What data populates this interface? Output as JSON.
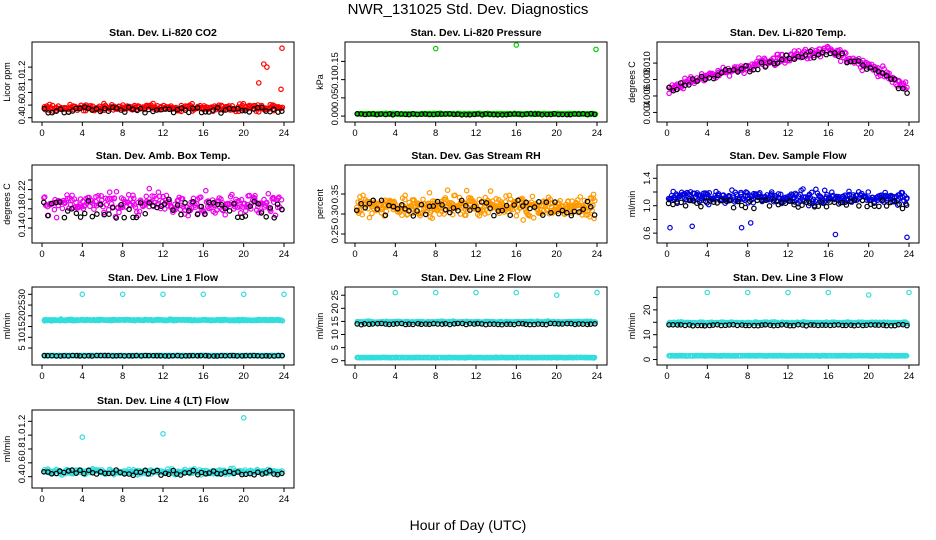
{
  "figure": {
    "title": "NWR_131025  Std. Dev. Diagnostics",
    "xlabel": "Hour of Day (UTC)"
  },
  "chart_data": [
    {
      "type": "scatter",
      "title": "Stan. Dev. Li-820 CO2",
      "ylabel": "Licor ppm",
      "xlim": [
        0,
        24
      ],
      "ylim": [
        0.38,
        1.55
      ],
      "xticks": [
        0,
        4,
        8,
        12,
        16,
        20,
        24
      ],
      "yticks": [
        0.4,
        0.6,
        0.8,
        1.0,
        1.2
      ],
      "ytick_labels": [
        "0.4",
        "0.6",
        "0.8",
        "1.0",
        "1.2"
      ],
      "series": [
        {
          "color": "#ff0000",
          "base": 0.56,
          "spread": 0.1,
          "count": 260,
          "outliers": [
            [
              21.5,
              0.95
            ],
            [
              22,
              1.25
            ],
            [
              22.3,
              1.2
            ],
            [
              22.9,
              0.6
            ],
            [
              23.7,
              0.85
            ],
            [
              23.8,
              1.5
            ],
            [
              13.8,
              0.5
            ]
          ]
        },
        {
          "color": "#000000",
          "base": 0.52,
          "spread": 0.06,
          "count": 60
        }
      ]
    },
    {
      "type": "scatter",
      "title": "Stan. Dev. Li-820 Pressure",
      "ylabel": "kPa",
      "xlim": [
        0,
        24
      ],
      "ylim": [
        -0.008,
        0.195
      ],
      "xticks": [
        0,
        4,
        8,
        12,
        16,
        20,
        24
      ],
      "yticks": [
        0.0,
        0.05,
        0.1,
        0.15
      ],
      "ytick_labels": [
        "0.00",
        "0.05",
        "0.10",
        "0.15"
      ],
      "series": [
        {
          "color": "#00cc00",
          "base": 0.006,
          "spread": 0.003,
          "count": 260,
          "outliers": [
            [
              8,
              0.185
            ],
            [
              16,
              0.195
            ],
            [
              23.9,
              0.183
            ]
          ]
        },
        {
          "color": "#000000",
          "base": 0.005,
          "spread": 0.002,
          "count": 60
        }
      ]
    },
    {
      "type": "scatter",
      "title": "Stan. Dev. Li-820 Temp.",
      "ylabel": "degrees C",
      "xlim": [
        0,
        24
      ],
      "ylim": [
        0.0032,
        0.0122
      ],
      "xticks": [
        0,
        4,
        8,
        12,
        16,
        20,
        24
      ],
      "yticks": [
        0.004,
        0.006,
        0.008,
        0.01
      ],
      "ytick_labels": [
        "0.004",
        "0.006",
        "0.008",
        "0.010"
      ],
      "series": [
        {
          "color": "#ee00ee",
          "profile": [
            [
              0,
              0.0068
            ],
            [
              4,
              0.0085
            ],
            [
              8,
              0.0095
            ],
            [
              12,
              0.0108
            ],
            [
              16,
              0.0115
            ],
            [
              20,
              0.0098
            ],
            [
              24,
              0.0068
            ]
          ],
          "spread": 0.0012,
          "count": 260
        },
        {
          "color": "#000000",
          "profile": [
            [
              0,
              0.0066
            ],
            [
              4,
              0.0083
            ],
            [
              8,
              0.0093
            ],
            [
              12,
              0.0106
            ],
            [
              16,
              0.0113
            ],
            [
              20,
              0.0096
            ],
            [
              24,
              0.0066
            ]
          ],
          "spread": 0.0006,
          "count": 60
        }
      ]
    },
    {
      "type": "scatter",
      "title": "Stan. Dev. Amb. Box Temp.",
      "ylabel": "degrees C",
      "xlim": [
        0,
        24
      ],
      "ylim": [
        0.115,
        0.265
      ],
      "xticks": [
        0,
        4,
        8,
        12,
        16,
        20,
        24
      ],
      "yticks": [
        0.14,
        0.16,
        0.18,
        0.2,
        0.22,
        0.24
      ],
      "ytick_labels": [
        "0.14",
        "",
        "0.18",
        "",
        "0.22",
        ""
      ],
      "series": [
        {
          "color": "#ee00ee",
          "base": 0.19,
          "spread": 0.04,
          "count": 260
        },
        {
          "color": "#000000",
          "base": 0.18,
          "spread": 0.025,
          "count": 60
        }
      ]
    },
    {
      "type": "scatter",
      "title": "Stan. Dev. Gas Stream RH",
      "ylabel": "percent",
      "xlim": [
        0,
        24
      ],
      "ylim": [
        0.235,
        0.415
      ],
      "xticks": [
        0,
        4,
        8,
        12,
        16,
        20,
        24
      ],
      "yticks": [
        0.25,
        0.3,
        0.35
      ],
      "ytick_labels": [
        "0.25",
        "0.30",
        "0.35"
      ],
      "series": [
        {
          "color": "#ff9900",
          "base": 0.32,
          "spread": 0.05,
          "count": 380
        },
        {
          "color": "#000000",
          "base": 0.315,
          "spread": 0.025,
          "count": 60
        }
      ]
    },
    {
      "type": "scatter",
      "title": "Stan. Dev. Sample Flow",
      "ylabel": "ml/min",
      "xlim": [
        0,
        24
      ],
      "ylim": [
        0.5,
        1.55
      ],
      "xticks": [
        0,
        4,
        8,
        12,
        16,
        20,
        24
      ],
      "yticks": [
        0.6,
        0.8,
        1.0,
        1.2,
        1.4
      ],
      "ytick_labels": [
        "0.6",
        "",
        "1.0",
        "",
        "1.4"
      ],
      "series": [
        {
          "color": "#0000dd",
          "base": 1.12,
          "spread": 0.18,
          "count": 300,
          "outliers": [
            [
              0.3,
              0.68
            ],
            [
              2.5,
              0.7
            ],
            [
              7.4,
              0.68
            ],
            [
              8.3,
              0.75
            ],
            [
              16.7,
              0.58
            ],
            [
              23.8,
              0.54
            ]
          ]
        },
        {
          "color": "#000000",
          "base": 1.02,
          "spread": 0.08,
          "count": 60
        }
      ]
    },
    {
      "type": "scatter",
      "title": "Stan. Dev. Line 1 Flow",
      "ylabel": "ml/min",
      "xlim": [
        0,
        24
      ],
      "ylim": [
        -1.5,
        32
      ],
      "xticks": [
        0,
        4,
        8,
        12,
        16,
        20,
        24
      ],
      "yticks": [
        5,
        10,
        15,
        20,
        25,
        30
      ],
      "ytick_labels": [
        "5",
        "10",
        "15",
        "20",
        "25",
        "30"
      ],
      "series": [
        {
          "color": "#33dddd",
          "base": 18,
          "spread": 0.6,
          "count": 280,
          "outliers": [
            [
              4,
              30
            ],
            [
              8,
              30
            ],
            [
              12,
              30
            ],
            [
              16,
              30
            ],
            [
              20,
              30
            ],
            [
              24,
              30
            ]
          ]
        },
        {
          "color": "#33dddd",
          "base": 1.5,
          "spread": 0.2,
          "count": 240
        },
        {
          "color": "#000000",
          "base": 1.4,
          "spread": 0.15,
          "count": 60
        }
      ]
    },
    {
      "type": "scatter",
      "title": "Stan. Dev. Line 2 Flow",
      "ylabel": "ml/min",
      "xlim": [
        0,
        24
      ],
      "ylim": [
        -0.5,
        27
      ],
      "xticks": [
        0,
        4,
        8,
        12,
        16,
        20,
        24
      ],
      "yticks": [
        0,
        5,
        10,
        15,
        20,
        25
      ],
      "ytick_labels": [
        "0",
        "5",
        "10",
        "15",
        "20",
        "25"
      ],
      "series": [
        {
          "color": "#33dddd",
          "base": 14.8,
          "spread": 0.5,
          "count": 280,
          "outliers": [
            [
              4,
              26
            ],
            [
              8,
              26
            ],
            [
              12,
              26
            ],
            [
              16,
              26
            ],
            [
              20,
              25
            ],
            [
              24,
              26
            ]
          ]
        },
        {
          "color": "#33dddd",
          "base": 1.2,
          "spread": 0.2,
          "count": 240
        },
        {
          "color": "#000000",
          "base": 14.0,
          "spread": 0.3,
          "count": 60
        }
      ]
    },
    {
      "type": "scatter",
      "title": "Stan. Dev. Line 3 Flow",
      "ylabel": "ml/min",
      "xlim": [
        0,
        24
      ],
      "ylim": [
        -1,
        28
      ],
      "xticks": [
        0,
        4,
        8,
        12,
        16,
        20,
        24
      ],
      "yticks": [
        0,
        5,
        10,
        15,
        20,
        25
      ],
      "ytick_labels": [
        "0",
        "",
        "10",
        "",
        "20",
        ""
      ],
      "series": [
        {
          "color": "#33dddd",
          "base": 14.8,
          "spread": 0.6,
          "count": 280,
          "outliers": [
            [
              4,
              27
            ],
            [
              8,
              27
            ],
            [
              12,
              27
            ],
            [
              16,
              27
            ],
            [
              20,
              26
            ],
            [
              24,
              27
            ]
          ]
        },
        {
          "color": "#33dddd",
          "base": 1.5,
          "spread": 0.2,
          "count": 240
        },
        {
          "color": "#000000",
          "base": 13.8,
          "spread": 0.3,
          "count": 60
        }
      ]
    },
    {
      "type": "scatter",
      "title": "Stan. Dev. Line 4 (LT) Flow",
      "ylabel": "ml/min",
      "xlim": [
        0,
        24
      ],
      "ylim": [
        0.28,
        1.32
      ],
      "xticks": [
        0,
        4,
        8,
        12,
        16,
        20,
        24
      ],
      "yticks": [
        0.4,
        0.6,
        0.8,
        1.0,
        1.2
      ],
      "ytick_labels": [
        "0.4",
        "0.6",
        "0.8",
        "1.0",
        "1.2"
      ],
      "series": [
        {
          "color": "#33dddd",
          "base": 0.47,
          "spread": 0.07,
          "count": 300,
          "outliers": [
            [
              4,
              0.97
            ],
            [
              12,
              1.02
            ],
            [
              20,
              1.25
            ]
          ]
        },
        {
          "color": "#000000",
          "base": 0.46,
          "spread": 0.05,
          "count": 60
        }
      ]
    }
  ]
}
